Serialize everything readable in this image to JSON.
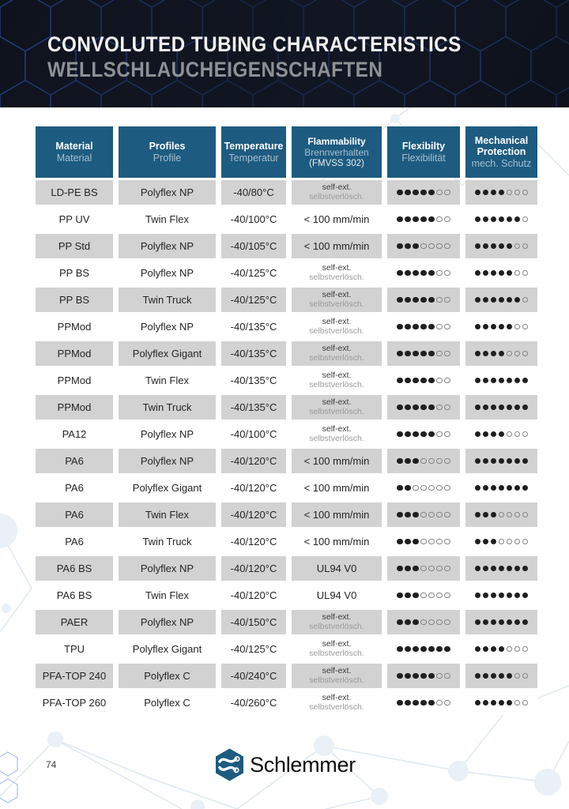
{
  "page": {
    "number": "74",
    "title_line1": "CONVOLUTED TUBING CHARACTERISTICS",
    "title_line2": "WELLSCHLAUCHEIGENSCHAFTEN",
    "brand": "Schlemmer",
    "logo_icon": "schlemmer-hexagon-tubes"
  },
  "colors": {
    "banner_bg": "#10141e",
    "banner_hex_stroke": "#26448f",
    "header_cell_bg": "#1d5b80",
    "header_subtext": "#a7bfce",
    "row_alt_bg": "#d2d2d2",
    "dot_filled": "#1f1f1f",
    "dot_empty_border": "#848484",
    "logo_blue": "#1d5b80",
    "pattern_line": "#dfe8f2"
  },
  "table": {
    "max_dots": 7,
    "headers": [
      {
        "en": "Material",
        "de": "Material"
      },
      {
        "en": "Profiles",
        "de": "Profile"
      },
      {
        "en": "Temperature",
        "de": "Temperatur"
      },
      {
        "en": "Flammability",
        "de": "Brennverhalten",
        "de2": "(FMVSS 302)"
      },
      {
        "en": "Flexibilty",
        "de": "Flexibilität"
      },
      {
        "en": "Mechanical Protection",
        "de": "mech. Schutz"
      }
    ],
    "rows": [
      {
        "material": "LD-PE BS",
        "profile": "Polyflex NP",
        "temperature": "-40/80°C",
        "flammability": "self-ext.",
        "flammability_de": "selbstverlösch.",
        "flexibility": 5,
        "protection": 4
      },
      {
        "material": "PP UV",
        "profile": "Twin Flex",
        "temperature": "-40/100°C",
        "flammability": "< 100 mm/min",
        "flammability_de": "",
        "flexibility": 5,
        "protection": 6
      },
      {
        "material": "PP Std",
        "profile": "Polyflex NP",
        "temperature": "-40/105°C",
        "flammability": "< 100 mm/min",
        "flammability_de": "",
        "flexibility": 3,
        "protection": 5
      },
      {
        "material": "PP BS",
        "profile": "Polyflex NP",
        "temperature": "-40/125°C",
        "flammability": "self-ext.",
        "flammability_de": "selbstverlösch.",
        "flexibility": 5,
        "protection": 5
      },
      {
        "material": "PP BS",
        "profile": "Twin Truck",
        "temperature": "-40/125°C",
        "flammability": "self-ext.",
        "flammability_de": "selbstverlösch.",
        "flexibility": 5,
        "protection": 6
      },
      {
        "material": "PPMod",
        "profile": "Polyflex NP",
        "temperature": "-40/135°C",
        "flammability": "self-ext.",
        "flammability_de": "selbstverlösch.",
        "flexibility": 5,
        "protection": 5
      },
      {
        "material": "PPMod",
        "profile": "Polyflex Gigant",
        "temperature": "-40/135°C",
        "flammability": "self-ext.",
        "flammability_de": "selbstverlösch.",
        "flexibility": 5,
        "protection": 4
      },
      {
        "material": "PPMod",
        "profile": "Twin Flex",
        "temperature": "-40/135°C",
        "flammability": "self-ext.",
        "flammability_de": "selbstverlösch.",
        "flexibility": 5,
        "protection": 7
      },
      {
        "material": "PPMod",
        "profile": "Twin Truck",
        "temperature": "-40/135°C",
        "flammability": "self-ext.",
        "flammability_de": "selbstverlösch.",
        "flexibility": 5,
        "protection": 7
      },
      {
        "material": "PA12",
        "profile": "Polyflex NP",
        "temperature": "-40/100°C",
        "flammability": "self-ext.",
        "flammability_de": "selbstverlösch.",
        "flexibility": 5,
        "protection": 4
      },
      {
        "material": "PA6",
        "profile": "Polyflex NP",
        "temperature": "-40/120°C",
        "flammability": "< 100 mm/min",
        "flammability_de": "",
        "flexibility": 3,
        "protection": 7
      },
      {
        "material": "PA6",
        "profile": "Polyflex Gigant",
        "temperature": "-40/120°C",
        "flammability": "< 100 mm/min",
        "flammability_de": "",
        "flexibility": 2,
        "protection": 7
      },
      {
        "material": "PA6",
        "profile": "Twin Flex",
        "temperature": "-40/120°C",
        "flammability": "< 100 mm/min",
        "flammability_de": "",
        "flexibility": 3,
        "protection": 3
      },
      {
        "material": "PA6",
        "profile": "Twin Truck",
        "temperature": "-40/120°C",
        "flammability": "< 100 mm/min",
        "flammability_de": "",
        "flexibility": 3,
        "protection": 3
      },
      {
        "material": "PA6 BS",
        "profile": "Polyflex NP",
        "temperature": "-40/120°C",
        "flammability": "UL94 V0",
        "flammability_de": "",
        "flexibility": 3,
        "protection": 7
      },
      {
        "material": "PA6 BS",
        "profile": "Twin Flex",
        "temperature": "-40/120°C",
        "flammability": "UL94 V0",
        "flammability_de": "",
        "flexibility": 3,
        "protection": 7
      },
      {
        "material": "PAER",
        "profile": "Polyflex NP",
        "temperature": "-40/150°C",
        "flammability": "self-ext.",
        "flammability_de": "selbstverlösch.",
        "flexibility": 3,
        "protection": 7
      },
      {
        "material": "TPU",
        "profile": "Polyflex Gigant",
        "temperature": "-40/125°C",
        "flammability": "self-ext.",
        "flammability_de": "selbstverlösch.",
        "flexibility": 7,
        "protection": 4
      },
      {
        "material": "PFA-TOP 240",
        "profile": "Polyflex C",
        "temperature": "-40/240°C",
        "flammability": "self-ext.",
        "flammability_de": "selbstverlösch.",
        "flexibility": 5,
        "protection": 5
      },
      {
        "material": "PFA-TOP 260",
        "profile": "Polyflex C",
        "temperature": "-40/260°C",
        "flammability": "self-ext.",
        "flammability_de": "selbstverlösch.",
        "flexibility": 5,
        "protection": 5
      }
    ]
  }
}
